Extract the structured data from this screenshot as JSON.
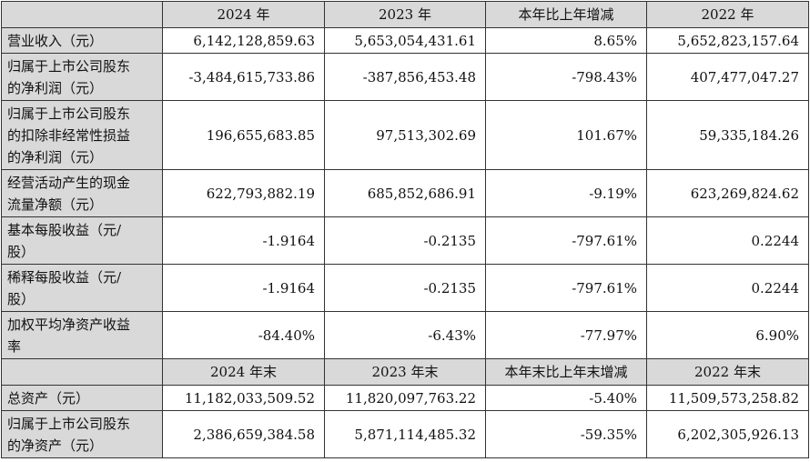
{
  "table": {
    "header": [
      "2024 年",
      "2023 年",
      "本年比上年增减",
      "2022 年"
    ],
    "rows": [
      {
        "label": [
          "营业收入（元）"
        ],
        "cells": [
          "6,142,128,859.63",
          "5,653,054,431.61",
          "8.65%",
          "5,652,823,157.64"
        ]
      },
      {
        "label": [
          "归属于上市公司股东",
          "的净利润（元）"
        ],
        "cells": [
          "-3,484,615,733.86",
          "-387,856,453.48",
          "-798.43%",
          "407,477,047.27"
        ]
      },
      {
        "label": [
          "归属于上市公司股东",
          "的扣除非经常性损益",
          "的净利润（元）"
        ],
        "cells": [
          "196,655,683.85",
          "97,513,302.69",
          "101.67%",
          "59,335,184.26"
        ]
      },
      {
        "label": [
          "经营活动产生的现金",
          "流量净额（元）"
        ],
        "cells": [
          "622,793,882.19",
          "685,852,686.91",
          "-9.19%",
          "623,269,824.62"
        ]
      },
      {
        "label": [
          "基本每股收益（元/",
          "股）"
        ],
        "cells": [
          "-1.9164",
          "-0.2135",
          "-797.61%",
          "0.2244"
        ]
      },
      {
        "label": [
          "稀释每股收益（元/",
          "股）"
        ],
        "cells": [
          "-1.9164",
          "-0.2135",
          "-797.61%",
          "0.2244"
        ]
      },
      {
        "label": [
          "加权平均净资产收益",
          "率"
        ],
        "cells": [
          "-84.40%",
          "-6.43%",
          "-77.97%",
          "6.90%"
        ]
      }
    ],
    "header2": [
      "2024 年末",
      "2023 年末",
      "本年末比上年末增减",
      "2022 年末"
    ],
    "rows2": [
      {
        "label": [
          "总资产（元）"
        ],
        "cells": [
          "11,182,033,509.52",
          "11,820,097,763.22",
          "-5.40%",
          "11,509,573,258.82"
        ]
      },
      {
        "label": [
          "归属于上市公司股东",
          "的净资产（元）"
        ],
        "cells": [
          "2,386,659,384.58",
          "5,871,114,485.32",
          "-59.35%",
          "6,202,305,926.13"
        ]
      }
    ]
  }
}
